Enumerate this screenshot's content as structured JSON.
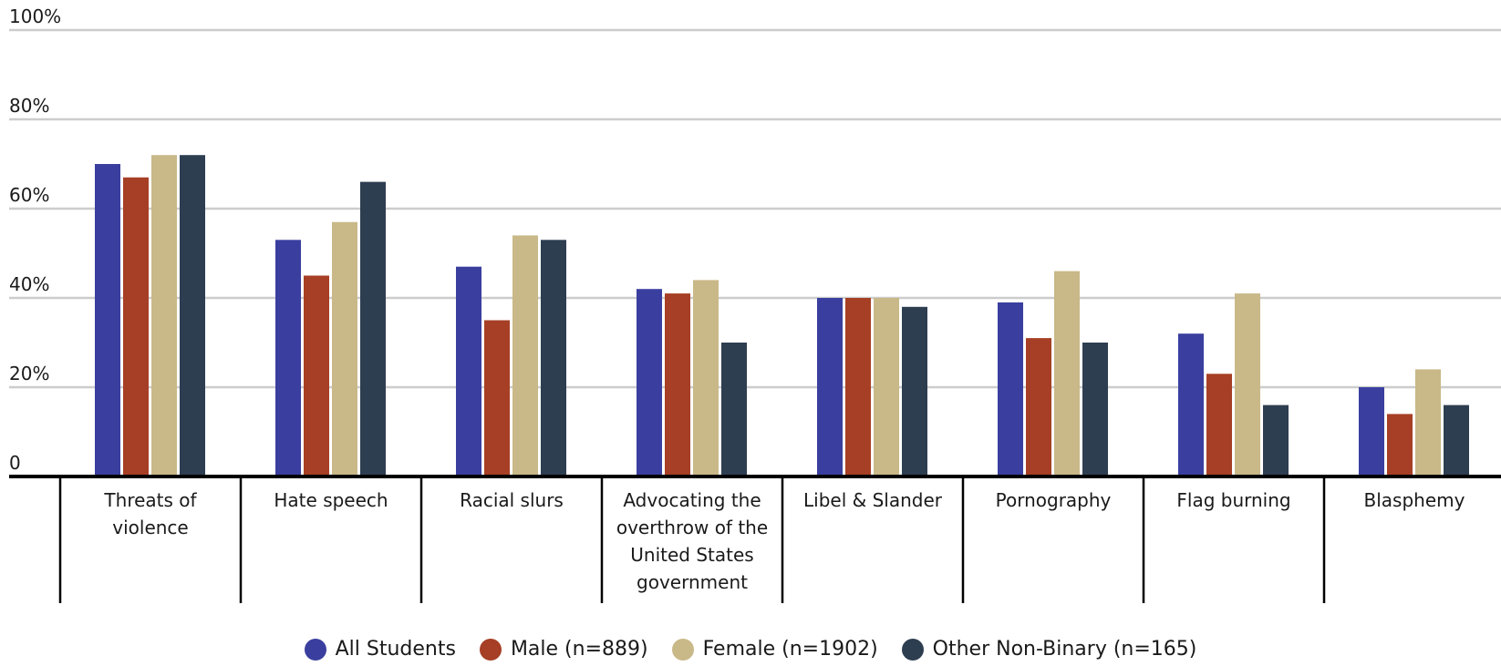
{
  "chart_data": {
    "type": "bar",
    "categories": [
      [
        "Threats of",
        "violence"
      ],
      [
        "Hate speech"
      ],
      [
        "Racial slurs"
      ],
      [
        "Advocating the",
        "overthrow of the",
        "United States",
        "government"
      ],
      [
        "Libel & Slander"
      ],
      [
        "Pornography"
      ],
      [
        "Flag burning"
      ],
      [
        "Blasphemy"
      ]
    ],
    "series": [
      {
        "name": "All Students",
        "color": "#3a3f9f",
        "values": [
          70,
          53,
          47,
          42,
          40,
          39,
          32,
          20
        ]
      },
      {
        "name": "Male (n=889)",
        "color": "#a63f25",
        "values": [
          67,
          45,
          35,
          41,
          40,
          31,
          23,
          14
        ]
      },
      {
        "name": "Female (n=1902)",
        "color": "#c9b888",
        "values": [
          72,
          57,
          54,
          44,
          40,
          46,
          41,
          24
        ]
      },
      {
        "name": "Other Non-Binary (n=165)",
        "color": "#2e3e51",
        "values": [
          72,
          66,
          53,
          30,
          38,
          30,
          16,
          16
        ]
      }
    ],
    "yticks": [
      "0",
      "20%",
      "40%",
      "60%",
      "80%",
      "100%"
    ],
    "ylim": [
      0,
      100
    ],
    "grid": true,
    "legend_position": "bottom"
  }
}
